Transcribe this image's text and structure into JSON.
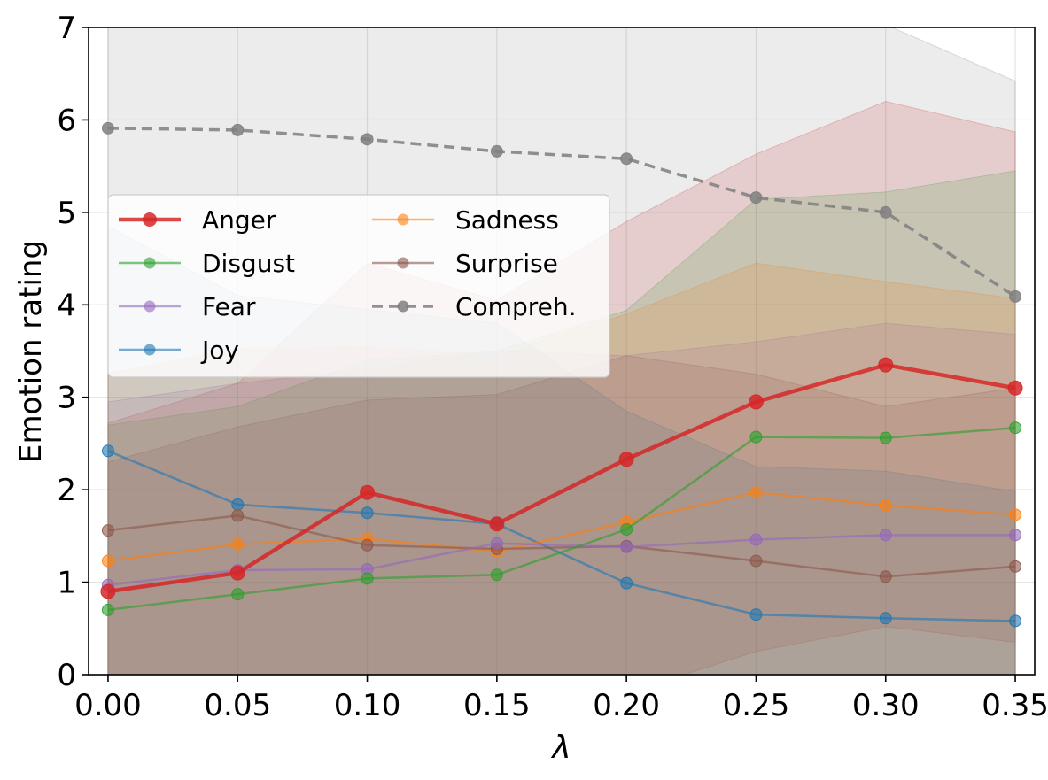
{
  "chart_data": {
    "type": "line",
    "title": "",
    "xlabel": "λ",
    "ylabel": "Emotion rating",
    "x": [
      0.0,
      0.05,
      0.1,
      0.15,
      0.2,
      0.25,
      0.3,
      0.35
    ],
    "x_tick_labels": [
      "0.00",
      "0.05",
      "0.10",
      "0.15",
      "0.20",
      "0.25",
      "0.30",
      "0.35"
    ],
    "y_ticks": [
      0,
      1,
      2,
      3,
      4,
      5,
      6,
      7
    ],
    "y_tick_labels": [
      "0",
      "1",
      "2",
      "3",
      "4",
      "5",
      "6",
      "7"
    ],
    "xlim": [
      -0.0075,
      0.3575
    ],
    "ylim": [
      0,
      7
    ],
    "grid": true,
    "legend_placement": "upper-left",
    "series": [
      {
        "name": "Anger",
        "color": "#d62728",
        "style": "solid",
        "emphasis": "bold",
        "values": [
          0.9,
          1.1,
          1.97,
          1.63,
          2.33,
          2.95,
          3.35,
          3.1
        ],
        "band_low": [
          -0.9,
          -0.9,
          -0.5,
          -0.8,
          -0.2,
          0.25,
          0.52,
          0.35
        ],
        "band_high": [
          2.72,
          3.15,
          4.45,
          4.05,
          4.9,
          5.63,
          6.2,
          5.87
        ]
      },
      {
        "name": "Disgust",
        "color": "#2ca02c",
        "style": "solid",
        "values": [
          0.7,
          0.87,
          1.04,
          1.08,
          1.57,
          2.57,
          2.56,
          2.67
        ],
        "band_low": [
          -1.3,
          -1.2,
          -1.3,
          -1.4,
          -0.8,
          0.0,
          -0.1,
          -0.1
        ],
        "band_high": [
          2.7,
          2.9,
          3.4,
          3.5,
          3.94,
          5.14,
          5.22,
          5.45
        ]
      },
      {
        "name": "Fear",
        "color": "#9467bd",
        "style": "solid",
        "values": [
          0.97,
          1.13,
          1.14,
          1.42,
          1.38,
          1.46,
          1.51,
          1.51
        ],
        "band_low": [
          -1.0,
          -0.9,
          -1.1,
          -0.8,
          -0.8,
          -0.7,
          -0.6,
          -0.5
        ],
        "band_high": [
          2.95,
          3.15,
          3.3,
          3.5,
          3.45,
          3.6,
          3.8,
          3.68
        ]
      },
      {
        "name": "Joy",
        "color": "#1f77b4",
        "style": "solid",
        "values": [
          2.42,
          1.84,
          1.75,
          1.63,
          0.99,
          0.65,
          0.61,
          0.58
        ],
        "band_low": [
          0.0,
          -0.3,
          -0.4,
          -0.5,
          -0.9,
          -1.0,
          -0.9,
          -0.9
        ],
        "band_high": [
          4.85,
          4.1,
          3.95,
          3.8,
          2.85,
          2.25,
          2.2,
          1.98
        ]
      },
      {
        "name": "Sadness",
        "color": "#ff7f0e",
        "style": "solid",
        "values": [
          1.23,
          1.41,
          1.47,
          1.33,
          1.65,
          1.97,
          1.83,
          1.73
        ],
        "band_low": [
          -0.8,
          -0.7,
          -0.6,
          -0.8,
          -0.6,
          -0.5,
          -0.6,
          -0.6
        ],
        "band_high": [
          3.26,
          3.53,
          3.55,
          3.45,
          3.9,
          4.45,
          4.25,
          4.07
        ]
      },
      {
        "name": "Surprise",
        "color": "#8c564b",
        "style": "solid",
        "values": [
          1.56,
          1.72,
          1.4,
          1.36,
          1.39,
          1.23,
          1.06,
          1.17
        ],
        "band_low": [
          -0.5,
          -0.5,
          -0.6,
          -0.6,
          -0.6,
          -0.6,
          -0.7,
          -0.6
        ],
        "band_high": [
          2.3,
          2.68,
          2.97,
          3.03,
          3.45,
          3.25,
          2.9,
          3.1
        ]
      },
      {
        "name": "Compreh.",
        "color": "#7f7f7f",
        "style": "dashed",
        "values": [
          5.91,
          5.89,
          5.79,
          5.66,
          5.58,
          5.16,
          5.0,
          4.09
        ],
        "band_low": [
          0.0,
          0.0,
          0.0,
          0.0,
          0.0,
          0.0,
          0.0,
          0.0
        ],
        "band_high": [
          7.3,
          7.3,
          7.3,
          7.3,
          7.3,
          7.3,
          7.03,
          6.42
        ]
      }
    ]
  }
}
